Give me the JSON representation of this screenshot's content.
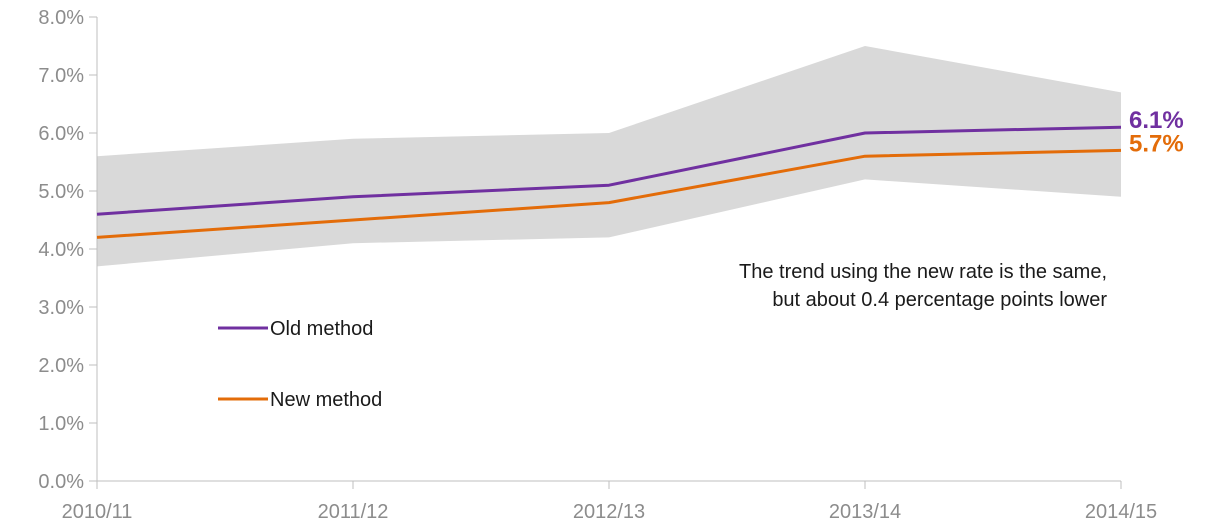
{
  "chart_data": {
    "type": "line",
    "title": "",
    "xlabel": "",
    "ylabel": "",
    "categories": [
      "2010/11",
      "2011/12",
      "2012/13",
      "2013/14",
      "2014/15"
    ],
    "ylim": [
      0,
      8
    ],
    "y_ticks": [
      "0.0%",
      "1.0%",
      "2.0%",
      "3.0%",
      "4.0%",
      "5.0%",
      "6.0%",
      "7.0%",
      "8.0%"
    ],
    "grid": false,
    "band": {
      "upper": [
        5.6,
        5.9,
        6.0,
        7.5,
        6.7
      ],
      "lower": [
        3.7,
        4.1,
        4.2,
        5.2,
        4.9
      ],
      "color": "#d9d9d9"
    },
    "series": [
      {
        "name": "Old method",
        "values": [
          4.6,
          4.9,
          5.1,
          6.0,
          6.1
        ],
        "color": "#7030a0",
        "end_label": "6.1%"
      },
      {
        "name": "New method",
        "values": [
          4.2,
          4.5,
          4.8,
          5.6,
          5.7
        ],
        "color": "#e36c09",
        "end_label": "5.7%"
      }
    ],
    "legend_position": "left",
    "annotation": [
      "The trend using the new rate is the same,",
      "but about 0.4 percentage points lower"
    ]
  }
}
